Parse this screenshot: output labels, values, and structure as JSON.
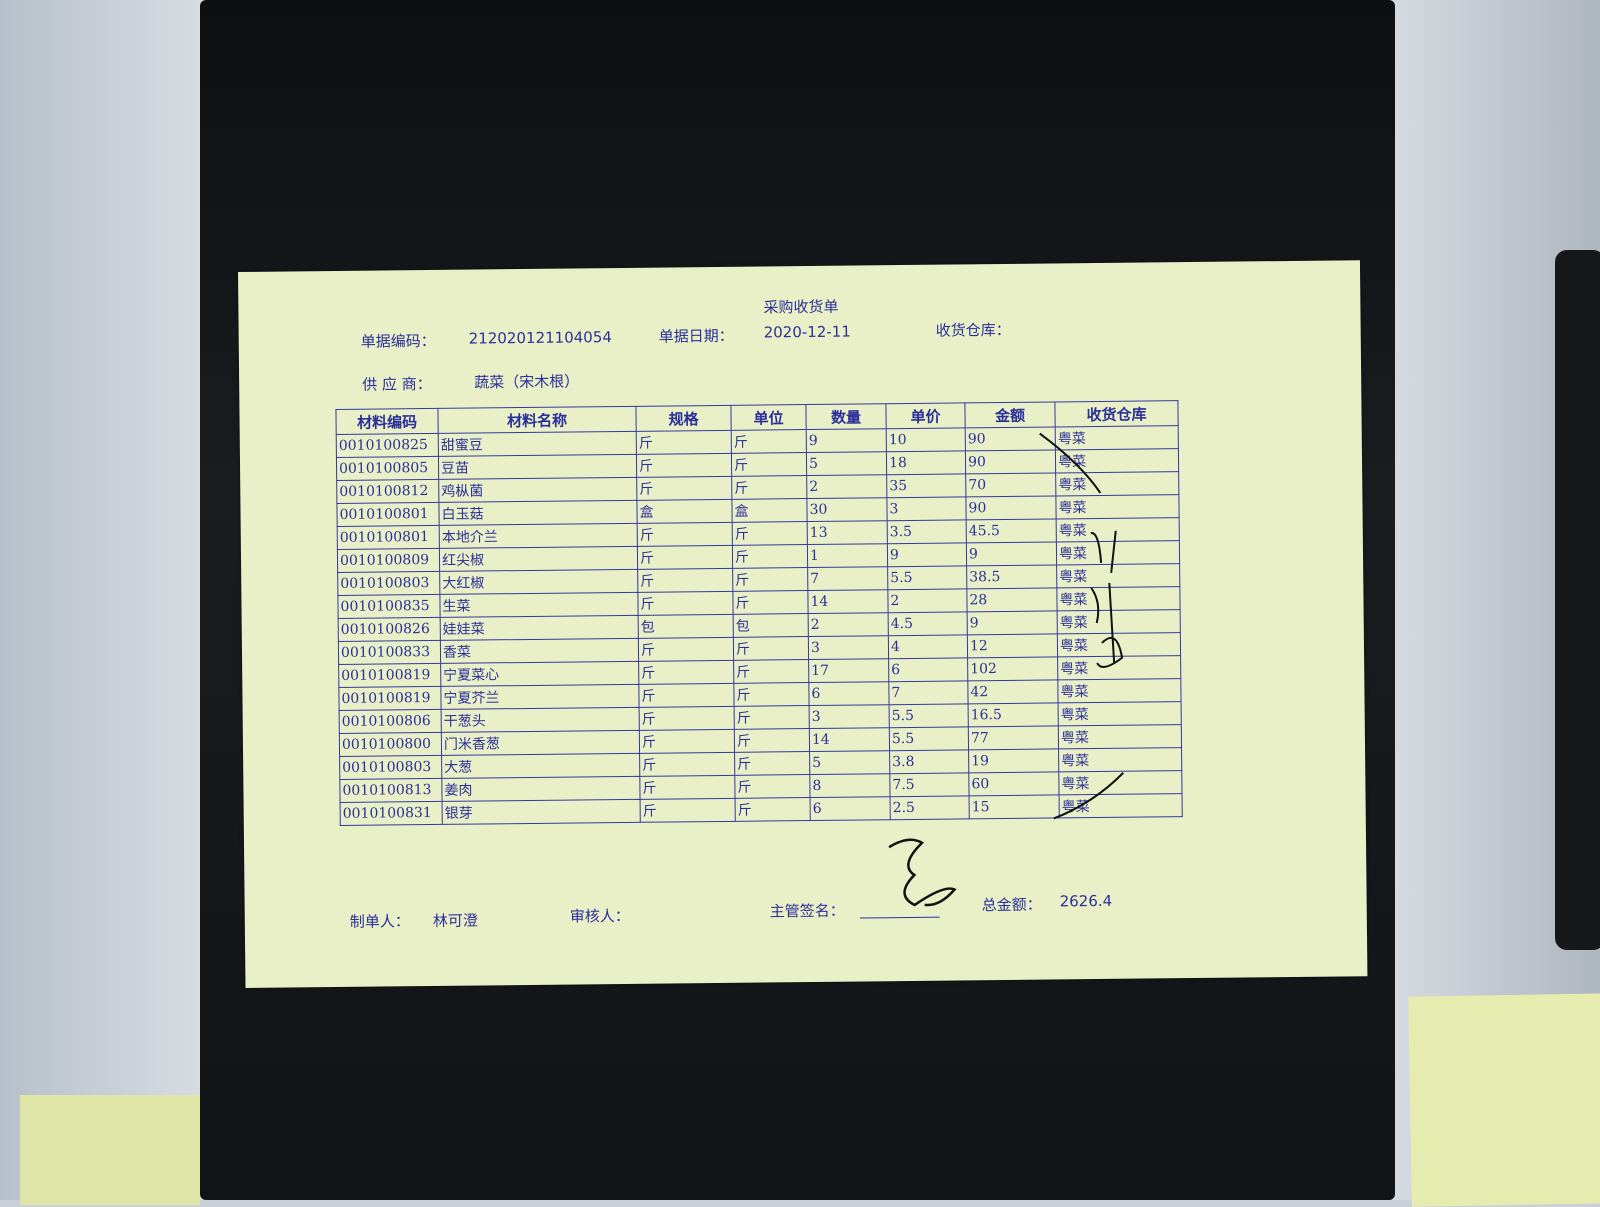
{
  "document": {
    "title": "采购收货单",
    "doc_no_label": "单据编码：",
    "doc_no": "212020121104054",
    "doc_date_label": "单据日期：",
    "doc_date": "2020-12-11",
    "warehouse_label": "收货仓库：",
    "supplier_label": "供 应 商：",
    "supplier": "蔬菜（宋木根）"
  },
  "table": {
    "headers": [
      "材料编码",
      "材料名称",
      "规格",
      "单位",
      "数量",
      "单价",
      "金额",
      "收货仓库"
    ],
    "rows": [
      [
        "0010100825",
        "甜蜜豆",
        "斤",
        "斤",
        "9",
        "10",
        "90",
        "粤菜"
      ],
      [
        "0010100805",
        "豆苗",
        "斤",
        "斤",
        "5",
        "18",
        "90",
        "粤菜"
      ],
      [
        "0010100812",
        "鸡枞菌",
        "斤",
        "斤",
        "2",
        "35",
        "70",
        "粤菜"
      ],
      [
        "0010100801",
        "白玉菇",
        "盒",
        "盒",
        "30",
        "3",
        "90",
        "粤菜"
      ],
      [
        "0010100801",
        "本地介兰",
        "斤",
        "斤",
        "13",
        "3.5",
        "45.5",
        "粤菜"
      ],
      [
        "0010100809",
        "红尖椒",
        "斤",
        "斤",
        "1",
        "9",
        "9",
        "粤菜"
      ],
      [
        "0010100803",
        "大红椒",
        "斤",
        "斤",
        "7",
        "5.5",
        "38.5",
        "粤菜"
      ],
      [
        "0010100835",
        "生菜",
        "斤",
        "斤",
        "14",
        "2",
        "28",
        "粤菜"
      ],
      [
        "0010100826",
        "娃娃菜",
        "包",
        "包",
        "2",
        "4.5",
        "9",
        "粤菜"
      ],
      [
        "0010100833",
        "香菜",
        "斤",
        "斤",
        "3",
        "4",
        "12",
        "粤菜"
      ],
      [
        "0010100819",
        "宁夏菜心",
        "斤",
        "斤",
        "17",
        "6",
        "102",
        "粤菜"
      ],
      [
        "0010100819",
        "宁夏芥兰",
        "斤",
        "斤",
        "6",
        "7",
        "42",
        "粤菜"
      ],
      [
        "0010100806",
        "干葱头",
        "斤",
        "斤",
        "3",
        "5.5",
        "16.5",
        "粤菜"
      ],
      [
        "0010100800",
        "门米香葱",
        "斤",
        "斤",
        "14",
        "5.5",
        "77",
        "粤菜"
      ],
      [
        "0010100803",
        "大葱",
        "斤",
        "斤",
        "5",
        "3.8",
        "19",
        "粤菜"
      ],
      [
        "0010100813",
        "姜肉",
        "斤",
        "斤",
        "8",
        "7.5",
        "60",
        "粤菜"
      ],
      [
        "0010100831",
        "银芽",
        "斤",
        "斤",
        "6",
        "2.5",
        "15",
        "粤菜"
      ]
    ]
  },
  "footer": {
    "maker_label": "制单人：",
    "maker": "林可澄",
    "reviewer_label": "审核人：",
    "supervisor_label": "主管签名：",
    "total_label": "总金额：",
    "total": "2626.4"
  },
  "colors": {
    "ink": "#2b2f9a",
    "paper": "#e9efc6"
  }
}
